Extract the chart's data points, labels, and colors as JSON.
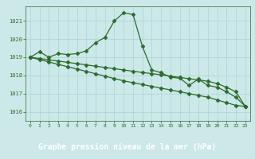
{
  "title": "Graphe pression niveau de la mer (hPa)",
  "bg_plot": "#cce8e8",
  "bg_label": "#2d6b2d",
  "grid_color": "#aad4d4",
  "line_color": "#2d6b2d",
  "label_text_color": "#ffffff",
  "tick_color": "#2d6b2d",
  "xlim": [
    -0.5,
    23.5
  ],
  "ylim": [
    1015.5,
    1021.8
  ],
  "yticks": [
    1016,
    1017,
    1018,
    1019,
    1020,
    1021
  ],
  "xticks": [
    0,
    1,
    2,
    3,
    4,
    5,
    6,
    7,
    8,
    9,
    10,
    11,
    12,
    13,
    14,
    15,
    16,
    17,
    18,
    19,
    20,
    21,
    22,
    23
  ],
  "series1_x": [
    0,
    1,
    2,
    3,
    4,
    5,
    6,
    7,
    8,
    9,
    10,
    11,
    12,
    13,
    14,
    15,
    16,
    17,
    18,
    19,
    20,
    21,
    22,
    23
  ],
  "series1_y": [
    1019.0,
    1019.3,
    1019.0,
    1019.2,
    1019.15,
    1019.2,
    1019.35,
    1019.8,
    1020.1,
    1021.0,
    1021.45,
    1021.35,
    1019.6,
    1018.3,
    1018.15,
    1017.9,
    1017.85,
    1017.45,
    1017.8,
    1017.45,
    1017.35,
    1017.1,
    1016.8,
    1016.3
  ],
  "series2_x": [
    0,
    1,
    2,
    3,
    4,
    5,
    6,
    7,
    8,
    9,
    10,
    11,
    12,
    13,
    14,
    15,
    16,
    17,
    18,
    19,
    20,
    21,
    22,
    23
  ],
  "series2_y": [
    1019.0,
    1018.93,
    1018.86,
    1018.79,
    1018.72,
    1018.65,
    1018.58,
    1018.51,
    1018.44,
    1018.37,
    1018.3,
    1018.23,
    1018.16,
    1018.1,
    1018.03,
    1017.96,
    1017.89,
    1017.82,
    1017.75,
    1017.68,
    1017.55,
    1017.35,
    1017.1,
    1016.3
  ],
  "series3_x": [
    0,
    1,
    2,
    3,
    4,
    5,
    6,
    7,
    8,
    9,
    10,
    11,
    12,
    13,
    14,
    15,
    16,
    17,
    18,
    19,
    20,
    21,
    22,
    23
  ],
  "series3_y": [
    1019.0,
    1018.87,
    1018.74,
    1018.61,
    1018.48,
    1018.35,
    1018.22,
    1018.09,
    1017.96,
    1017.83,
    1017.7,
    1017.6,
    1017.5,
    1017.4,
    1017.3,
    1017.2,
    1017.1,
    1017.0,
    1016.9,
    1016.8,
    1016.65,
    1016.5,
    1016.35,
    1016.3
  ]
}
